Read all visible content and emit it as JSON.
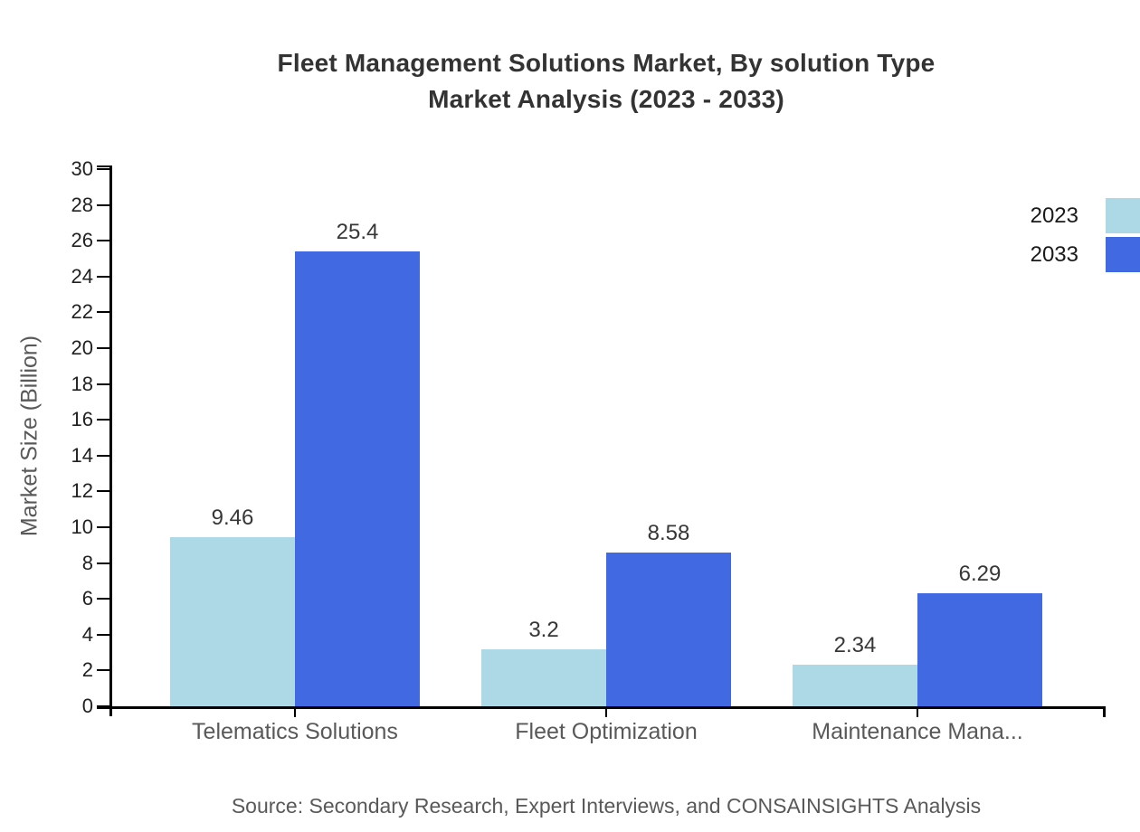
{
  "title": {
    "line1": "Fleet Management Solutions Market, By solution Type",
    "line2": "Market Analysis (2023 - 2033)"
  },
  "source": "Source: Secondary Research, Expert Interviews, and CONSAINSIGHTS Analysis",
  "chart_data": {
    "type": "bar",
    "title": "Fleet Management Solutions Market, By solution Type Market Analysis (2023 - 2033)",
    "categories": [
      "Telematics Solutions",
      "Fleet Optimization",
      "Maintenance Mana..."
    ],
    "series": [
      {
        "name": "2023",
        "color": "#ADD8E6",
        "values": [
          9.46,
          3.2,
          2.34
        ]
      },
      {
        "name": "2033",
        "color": "#4169E1",
        "values": [
          25.4,
          8.58,
          6.29
        ]
      }
    ],
    "ylabel": "Market Size (Billion)",
    "xlabel": "",
    "ylim": [
      0,
      30
    ],
    "yticks": [
      0,
      2,
      4,
      6,
      8,
      10,
      12,
      14,
      16,
      18,
      20,
      22,
      24,
      26,
      28,
      30
    ],
    "grid": false,
    "legend_position": "top-right"
  }
}
